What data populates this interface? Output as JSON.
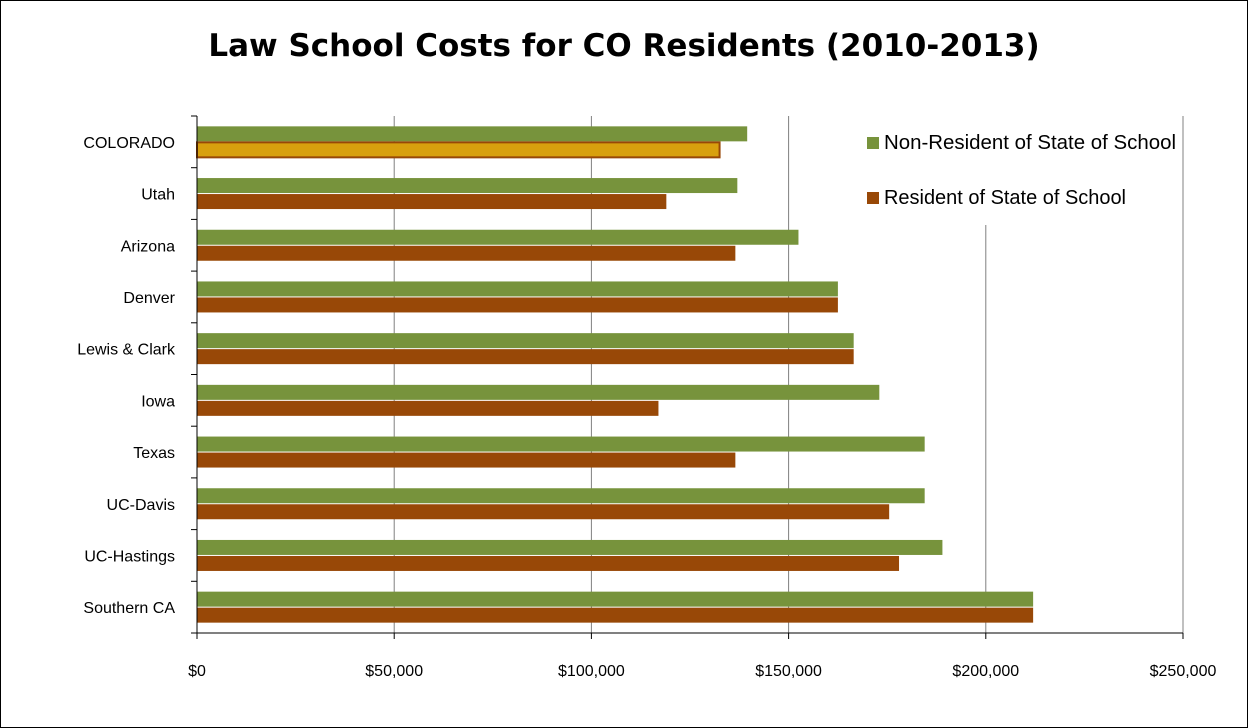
{
  "chart_data": {
    "type": "bar",
    "orientation": "horizontal",
    "title": "Law School Costs for CO Residents (2010-2013)",
    "categories": [
      "COLORADO",
      "Utah",
      "Arizona",
      "Denver",
      "Lewis & Clark",
      "Iowa",
      "Texas",
      "UC-Davis",
      "UC-Hastings",
      "Southern CA"
    ],
    "series": [
      {
        "name": "Non-Resident of State of School",
        "color": "#77933c",
        "values": [
          139500,
          137000,
          152500,
          162500,
          166500,
          173000,
          184500,
          184500,
          189000,
          212000
        ]
      },
      {
        "name": "Resident of State of School",
        "color": "#984807",
        "highlight": {
          "category": "COLORADO",
          "fill": "#d8a00e"
        },
        "values": [
          132500,
          119000,
          136500,
          162500,
          166500,
          117000,
          136500,
          175500,
          178000,
          212000
        ]
      }
    ],
    "xlim": [
      0,
      250000
    ],
    "xticks": [
      "$0",
      "$50,000",
      "$100,000",
      "$150,000",
      "$200,000",
      "$250,000"
    ],
    "xlabel": "",
    "ylabel": "",
    "grid": "vertical",
    "legend": "top-right"
  }
}
